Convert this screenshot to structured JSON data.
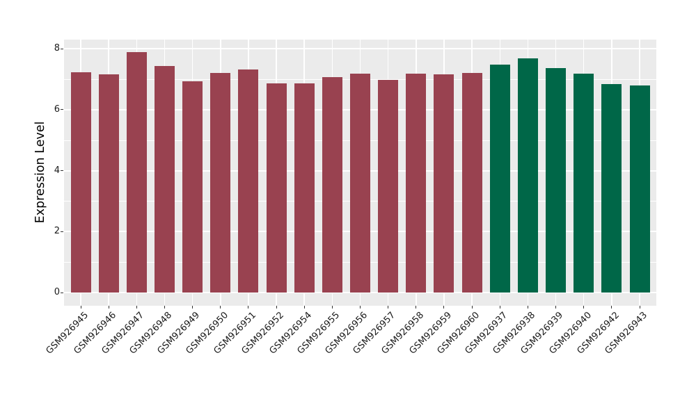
{
  "chart_data": {
    "type": "bar",
    "title": "",
    "xlabel": "",
    "ylabel": "Expression Level",
    "ylim": [
      0,
      8.3
    ],
    "yticks": [
      0,
      2,
      4,
      6,
      8
    ],
    "minor_gridlines": [
      1,
      3,
      5,
      7
    ],
    "grid": true,
    "legend_position": "none",
    "panel_background": "#EBEBEB",
    "gridline_color": "#FFFFFF",
    "axis_text_color": "#1A1A1A",
    "categories": [
      "GSM926945",
      "GSM926946",
      "GSM926947",
      "GSM926948",
      "GSM926949",
      "GSM926950",
      "GSM926951",
      "GSM926952",
      "GSM926954",
      "GSM926955",
      "GSM926956",
      "GSM926957",
      "GSM926958",
      "GSM926959",
      "GSM926960",
      "GSM926937",
      "GSM926938",
      "GSM926939",
      "GSM926940",
      "GSM926942",
      "GSM926943"
    ],
    "values": [
      7.22,
      7.15,
      7.88,
      7.44,
      6.93,
      7.2,
      7.33,
      6.86,
      6.86,
      7.06,
      7.18,
      6.98,
      7.18,
      7.16,
      7.21,
      7.48,
      7.68,
      7.36,
      7.19,
      6.84,
      6.8
    ],
    "colors": [
      "#994250",
      "#994250",
      "#994250",
      "#994250",
      "#994250",
      "#994250",
      "#994250",
      "#994250",
      "#994250",
      "#994250",
      "#994250",
      "#994250",
      "#994250",
      "#994250",
      "#994250",
      "#006748",
      "#006748",
      "#006748",
      "#006748",
      "#006748",
      "#006748"
    ],
    "group_colors": {
      "left_group": "#994250",
      "right_group": "#006748"
    }
  }
}
